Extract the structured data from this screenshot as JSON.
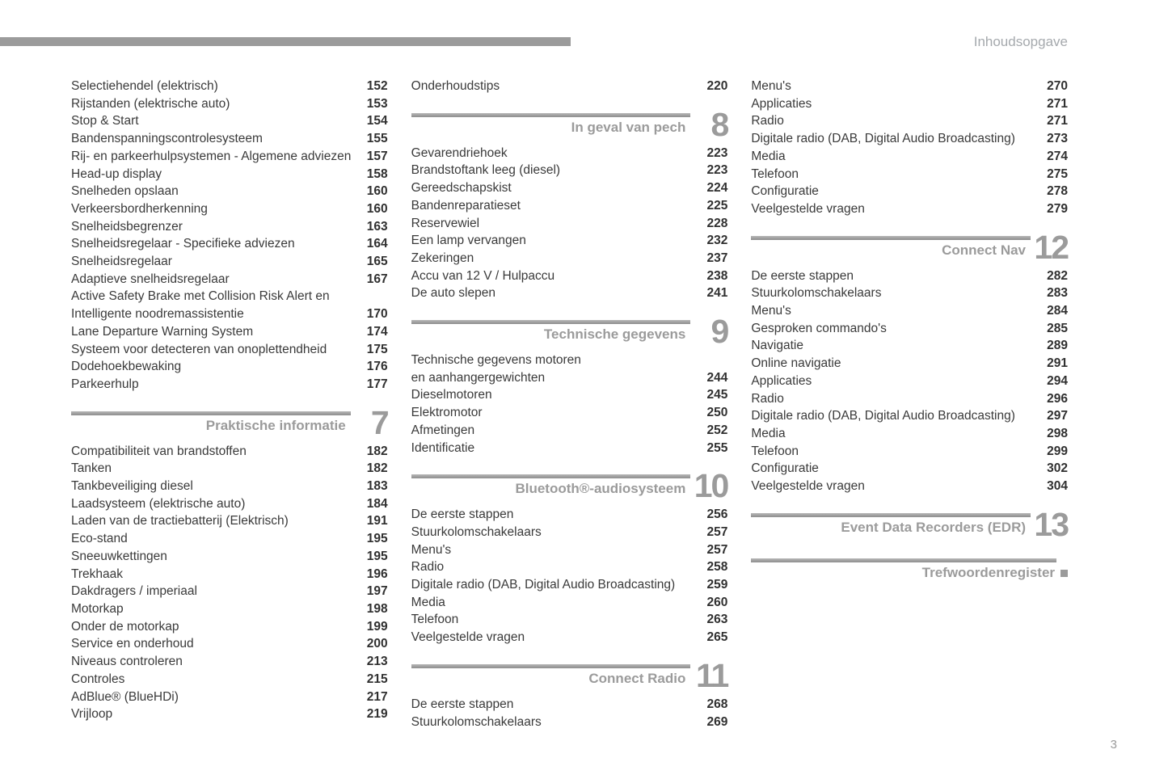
{
  "header": {
    "title": "Inhoudsopgave"
  },
  "footer": {
    "page_number": "3"
  },
  "colors": {
    "section_gray": "#9b9b9b",
    "body_text": "#3a3a3a"
  },
  "columns": [
    {
      "blocks": [
        {
          "type": "entries",
          "items": [
            {
              "lines": [
                "Selectiehendel (elektrisch)"
              ],
              "page": "152"
            },
            {
              "lines": [
                "Rijstanden (elektrische auto)"
              ],
              "page": "153"
            },
            {
              "lines": [
                "Stop & Start"
              ],
              "page": "154"
            },
            {
              "lines": [
                "Bandenspanningscontrolesysteem"
              ],
              "page": "155"
            },
            {
              "lines": [
                "Rij- en parkeerhulpsystemen - Algemene adviezen"
              ],
              "page": "157"
            },
            {
              "lines": [
                "Head-up display"
              ],
              "page": "158"
            },
            {
              "lines": [
                "Snelheden opslaan"
              ],
              "page": "160"
            },
            {
              "lines": [
                "Verkeersbordherkenning"
              ],
              "page": "160"
            },
            {
              "lines": [
                "Snelheidsbegrenzer"
              ],
              "page": "163"
            },
            {
              "lines": [
                "Snelheidsregelaar - Specifieke adviezen"
              ],
              "page": "164"
            },
            {
              "lines": [
                "Snelheidsregelaar"
              ],
              "page": "165"
            },
            {
              "lines": [
                "Adaptieve snelheidsregelaar"
              ],
              "page": "167"
            },
            {
              "lines": [
                "Active Safety Brake met Collision Risk Alert en",
                "Intelligente noodremassistentie"
              ],
              "page": "170"
            },
            {
              "lines": [
                "Lane Departure Warning System"
              ],
              "page": "174"
            },
            {
              "lines": [
                "Systeem voor detecteren van onoplettendheid"
              ],
              "page": "175"
            },
            {
              "lines": [
                "Dodehoekbewaking"
              ],
              "page": "176"
            },
            {
              "lines": [
                "Parkeerhulp"
              ],
              "page": "177"
            }
          ]
        },
        {
          "type": "section",
          "label": "Praktische informatie",
          "number": "7"
        },
        {
          "type": "entries",
          "items": [
            {
              "lines": [
                "Compatibiliteit van brandstoffen"
              ],
              "page": "182"
            },
            {
              "lines": [
                "Tanken"
              ],
              "page": "182"
            },
            {
              "lines": [
                "Tankbeveiliging diesel"
              ],
              "page": "183"
            },
            {
              "lines": [
                "Laadsysteem (elektrische auto)"
              ],
              "page": "184"
            },
            {
              "lines": [
                "Laden van de tractiebatterij (Elektrisch)"
              ],
              "page": "191"
            },
            {
              "lines": [
                "Eco-stand"
              ],
              "page": "195"
            },
            {
              "lines": [
                "Sneeuwkettingen"
              ],
              "page": "195"
            },
            {
              "lines": [
                "Trekhaak"
              ],
              "page": "196"
            },
            {
              "lines": [
                "Dakdragers / imperiaal"
              ],
              "page": "197"
            },
            {
              "lines": [
                "Motorkap"
              ],
              "page": "198"
            },
            {
              "lines": [
                "Onder de motorkap"
              ],
              "page": "199"
            },
            {
              "lines": [
                "Service en onderhoud"
              ],
              "page": "200"
            },
            {
              "lines": [
                "Niveaus controleren"
              ],
              "page": "213"
            },
            {
              "lines": [
                "Controles"
              ],
              "page": "215"
            },
            {
              "lines": [
                "AdBlue® (BlueHDi)"
              ],
              "page": "217"
            },
            {
              "lines": [
                "Vrijloop"
              ],
              "page": "219"
            }
          ]
        }
      ]
    },
    {
      "blocks": [
        {
          "type": "entries",
          "items": [
            {
              "lines": [
                "Onderhoudstips"
              ],
              "page": "220"
            }
          ]
        },
        {
          "type": "section",
          "label": "In geval van pech",
          "number": "8"
        },
        {
          "type": "entries",
          "items": [
            {
              "lines": [
                "Gevarendriehoek"
              ],
              "page": "223"
            },
            {
              "lines": [
                "Brandstoftank leeg (diesel)"
              ],
              "page": "223"
            },
            {
              "lines": [
                "Gereedschapskist"
              ],
              "page": "224"
            },
            {
              "lines": [
                "Bandenreparatieset"
              ],
              "page": "225"
            },
            {
              "lines": [
                "Reservewiel"
              ],
              "page": "228"
            },
            {
              "lines": [
                "Een lamp vervangen"
              ],
              "page": "232"
            },
            {
              "lines": [
                "Zekeringen"
              ],
              "page": "237"
            },
            {
              "lines": [
                "Accu van 12 V / Hulpaccu"
              ],
              "page": "238"
            },
            {
              "lines": [
                "De auto slepen"
              ],
              "page": "241"
            }
          ]
        },
        {
          "type": "section",
          "label": "Technische gegevens",
          "number": "9"
        },
        {
          "type": "entries",
          "items": [
            {
              "lines": [
                "Technische gegevens motoren",
                "en aanhangergewichten"
              ],
              "page": "244"
            },
            {
              "lines": [
                "Dieselmotoren"
              ],
              "page": "245"
            },
            {
              "lines": [
                "Elektromotor"
              ],
              "page": "250"
            },
            {
              "lines": [
                "Afmetingen"
              ],
              "page": "252"
            },
            {
              "lines": [
                "Identificatie"
              ],
              "page": "255"
            }
          ]
        },
        {
          "type": "section",
          "label": "Bluetooth®-audiosysteem",
          "number": "10"
        },
        {
          "type": "entries",
          "items": [
            {
              "lines": [
                "De eerste stappen"
              ],
              "page": "256"
            },
            {
              "lines": [
                "Stuurkolomschakelaars"
              ],
              "page": "257"
            },
            {
              "lines": [
                "Menu's"
              ],
              "page": "257"
            },
            {
              "lines": [
                "Radio"
              ],
              "page": "258"
            },
            {
              "lines": [
                "Digitale radio (DAB, Digital Audio Broadcasting)"
              ],
              "page": "259"
            },
            {
              "lines": [
                "Media"
              ],
              "page": "260"
            },
            {
              "lines": [
                "Telefoon"
              ],
              "page": "263"
            },
            {
              "lines": [
                "Veelgestelde vragen"
              ],
              "page": "265"
            }
          ]
        },
        {
          "type": "section",
          "label": "Connect Radio",
          "number": "11"
        },
        {
          "type": "entries",
          "items": [
            {
              "lines": [
                "De eerste stappen"
              ],
              "page": "268"
            },
            {
              "lines": [
                "Stuurkolomschakelaars"
              ],
              "page": "269"
            }
          ]
        }
      ]
    },
    {
      "blocks": [
        {
          "type": "entries",
          "items": [
            {
              "lines": [
                "Menu's"
              ],
              "page": "270"
            },
            {
              "lines": [
                "Applicaties"
              ],
              "page": "271"
            },
            {
              "lines": [
                "Radio"
              ],
              "page": "271"
            },
            {
              "lines": [
                "Digitale radio (DAB, Digital Audio Broadcasting)"
              ],
              "page": "273"
            },
            {
              "lines": [
                "Media"
              ],
              "page": "274"
            },
            {
              "lines": [
                "Telefoon"
              ],
              "page": "275"
            },
            {
              "lines": [
                "Configuratie"
              ],
              "page": "278"
            },
            {
              "lines": [
                "Veelgestelde vragen"
              ],
              "page": "279"
            }
          ]
        },
        {
          "type": "section",
          "label": "Connect Nav",
          "number": "12"
        },
        {
          "type": "entries",
          "items": [
            {
              "lines": [
                "De eerste stappen"
              ],
              "page": "282"
            },
            {
              "lines": [
                "Stuurkolomschakelaars"
              ],
              "page": "283"
            },
            {
              "lines": [
                "Menu's"
              ],
              "page": "284"
            },
            {
              "lines": [
                "Gesproken commando's"
              ],
              "page": "285"
            },
            {
              "lines": [
                "Navigatie"
              ],
              "page": "289"
            },
            {
              "lines": [
                "Online navigatie"
              ],
              "page": "291"
            },
            {
              "lines": [
                "Applicaties"
              ],
              "page": "294"
            },
            {
              "lines": [
                "Radio"
              ],
              "page": "296"
            },
            {
              "lines": [
                "Digitale radio (DAB, Digital Audio Broadcasting)"
              ],
              "page": "297"
            },
            {
              "lines": [
                "Media"
              ],
              "page": "298"
            },
            {
              "lines": [
                "Telefoon"
              ],
              "page": "299"
            },
            {
              "lines": [
                "Configuratie"
              ],
              "page": "302"
            },
            {
              "lines": [
                "Veelgestelde vragen"
              ],
              "page": "304"
            }
          ]
        },
        {
          "type": "section",
          "label": "Event Data Recorders (EDR)",
          "number": "13"
        },
        {
          "type": "section",
          "label": "Trefwoordenregister",
          "number": null,
          "marker": "square"
        }
      ]
    }
  ]
}
